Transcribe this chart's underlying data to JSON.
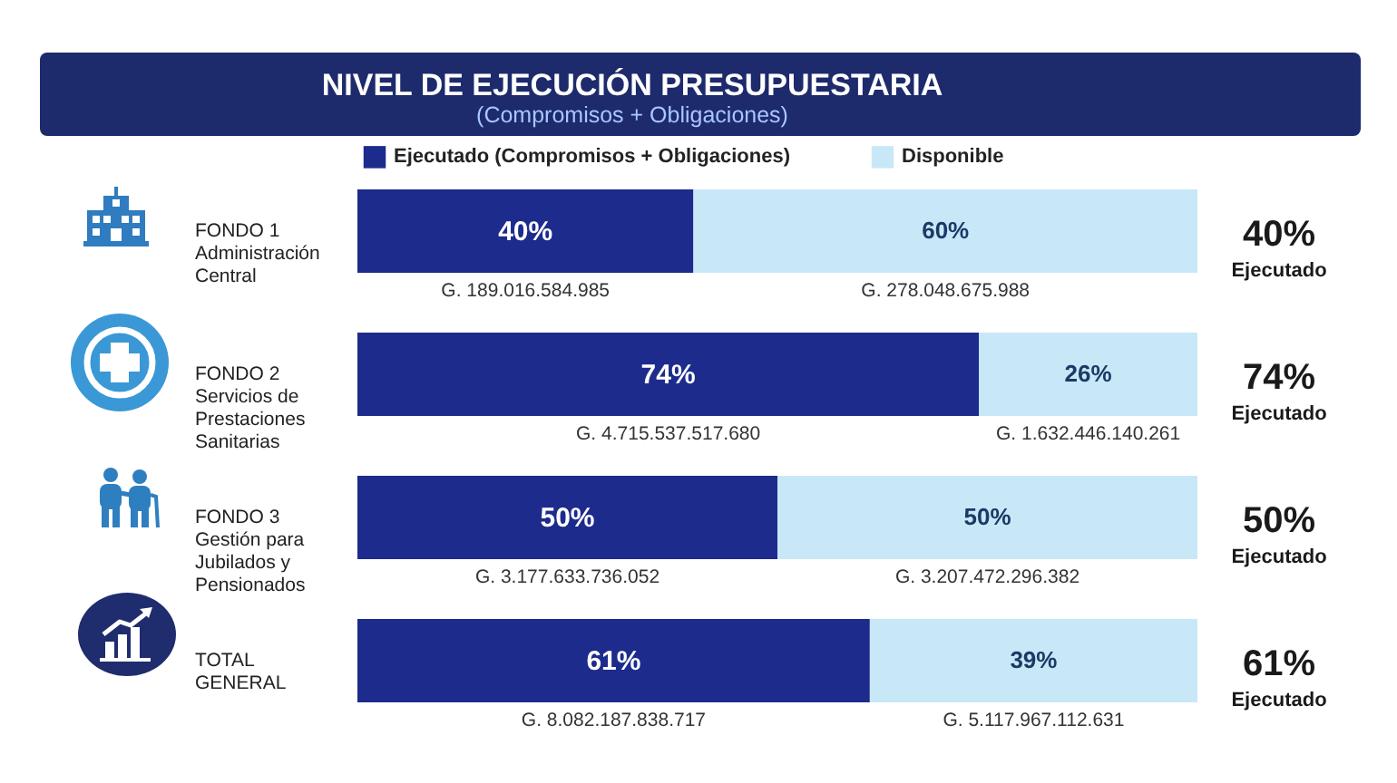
{
  "chart_data": {
    "type": "bar",
    "orientation": "horizontal",
    "stacked": true,
    "title": "NIVEL DE EJECUCIÓN PRESUPUESTARIA",
    "subtitle": "(Compromisos + Obligaciones)",
    "categories": [
      "FONDO 1\nAdministración\nCentral",
      "FONDO 2\nServicios de\nPrestaciones\nSanitarias",
      "FONDO 3\nGestión para\nJubilados y\nPensionados",
      "TOTAL\nGENERAL"
    ],
    "series": [
      {
        "name": "Ejecutado (Compromisos + Obligaciones)",
        "color": "#1c2b8c",
        "values": [
          40,
          74,
          50,
          61
        ],
        "value_labels": [
          "40%",
          "74%",
          "50%",
          "61%"
        ]
      },
      {
        "name": "Disponible",
        "color": "#c8e8f8",
        "values": [
          60,
          26,
          50,
          39
        ],
        "value_labels": [
          "60%",
          "26%",
          "50%",
          "39%"
        ]
      }
    ],
    "xlim": [
      0,
      100
    ],
    "tick_labels": "y",
    "legend": "top",
    "annotations": [
      "G. 189.016.584.985",
      "G. 278.048.675.988",
      "40%",
      "Ejecutado",
      "G. 4.715.537.517.680",
      "G. 1.632.446.140.261",
      "74%",
      "Ejecutado",
      "G. 3.177.633.736.052",
      "G. 3.207.472.296.382",
      "50%",
      "Ejecutado",
      "G. 8.082.187.838.717",
      "G. 5.117.967.112.631",
      "61%",
      "Ejecutado"
    ]
  }
}
